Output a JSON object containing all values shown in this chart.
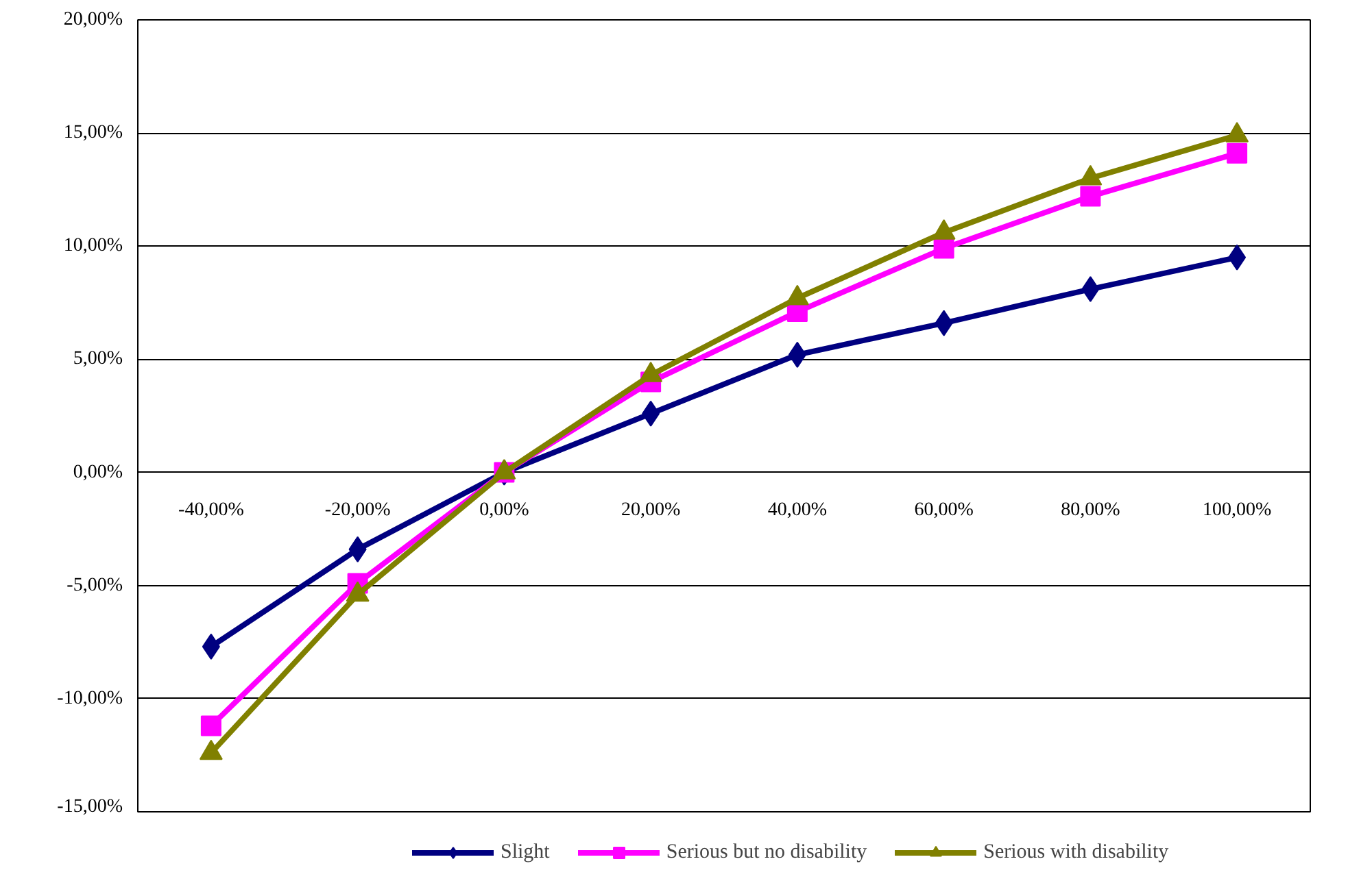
{
  "chart_data": {
    "type": "line",
    "categories": [
      "-40,00%",
      "-20,00%",
      "0,00%",
      "20,00%",
      "40,00%",
      "60,00%",
      "80,00%",
      "100,00%"
    ],
    "series": [
      {
        "name": "Slight",
        "color": "#000080",
        "marker": "diamond",
        "values": [
          -7.7,
          -3.4,
          0,
          2.6,
          5.2,
          6.6,
          8.1,
          9.5
        ]
      },
      {
        "name": "Serious but no disability",
        "color": "#ff00ff",
        "marker": "square",
        "values": [
          -11.2,
          -4.9,
          0,
          4.0,
          7.1,
          9.9,
          12.2,
          14.1
        ]
      },
      {
        "name": "Serious with disability",
        "color": "#808000",
        "marker": "triangle",
        "values": [
          -12.4,
          -5.4,
          0,
          4.3,
          7.7,
          10.6,
          13.0,
          14.9
        ]
      }
    ],
    "ylim": [
      -15,
      20
    ],
    "yticks": [
      {
        "value": -15,
        "label": "-15,00%"
      },
      {
        "value": -10,
        "label": "-10,00%"
      },
      {
        "value": -5,
        "label": "-5,00%"
      },
      {
        "value": 0,
        "label": "0,00%"
      },
      {
        "value": 5,
        "label": "5,00%"
      },
      {
        "value": 10,
        "label": "10,00%"
      },
      {
        "value": 15,
        "label": "15,00%"
      },
      {
        "value": 20,
        "label": "20,00%"
      }
    ],
    "grid": "y",
    "legend": "bottom",
    "line_style": "solid"
  }
}
